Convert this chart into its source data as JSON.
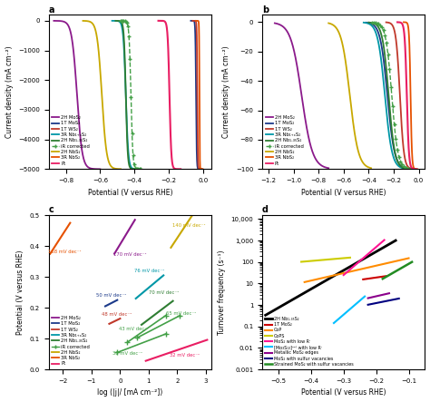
{
  "panel_a": {
    "title": "a",
    "xlabel": "Potential (V versus RHE)",
    "ylabel": "Current density (mA cm⁻²)",
    "xlim": [
      -0.9,
      0.05
    ],
    "ylim": [
      -5000,
      200
    ],
    "yticks": [
      0,
      -1000,
      -2000,
      -3000,
      -4000,
      -5000
    ],
    "xticks": [
      -0.8,
      -0.6,
      -0.4,
      -0.2,
      0.0
    ]
  },
  "panel_b": {
    "title": "b",
    "xlabel": "Potential (V versus RHE)",
    "ylabel": "Current density (mA cm⁻²)",
    "xlim": [
      -1.25,
      0.05
    ],
    "ylim": [
      -100,
      5
    ],
    "yticks": [
      0,
      -20,
      -40,
      -60,
      -80,
      -100
    ],
    "xticks": [
      -1.2,
      -1.0,
      -0.8,
      -0.6,
      -0.4,
      -0.2,
      0.0
    ]
  },
  "panel_c": {
    "title": "c",
    "xlabel": "log (|j|/ [mA cm⁻²])",
    "ylabel": "Potential (V versus RHE)",
    "xlim": [
      -2.5,
      3.2
    ],
    "ylim": [
      0.0,
      0.5
    ],
    "yticks": [
      0.0,
      0.1,
      0.2,
      0.3,
      0.4,
      0.5
    ],
    "xticks": [
      -2,
      -1,
      0,
      1,
      2,
      3
    ]
  },
  "panel_d": {
    "title": "d",
    "xlabel": "Potential (V versus RHE)",
    "ylabel": "Turnover frequency (s⁻¹)",
    "xlim": [
      -0.55,
      -0.05
    ],
    "xticks": [
      -0.5,
      -0.4,
      -0.3,
      -0.2,
      -0.1
    ]
  },
  "colors": {
    "2H MoS2": "#8B1A8B",
    "1T MoS2": "#1C3A8A",
    "1T WS2": "#C0392B",
    "3R NbxS2": "#0097A7",
    "2H Nb135S2": "#2E7D32",
    "iR": "#43A047",
    "2H NbS2": "#C8A800",
    "3R NbS2": "#E65100",
    "Pt": "#E91E63"
  },
  "legend_entries": [
    {
      "label": "2H MoS₂",
      "color": "#8B1A8B"
    },
    {
      "label": "1T MoS₂",
      "color": "#1C3A8A"
    },
    {
      "label": "1T WS₂",
      "color": "#C0392B"
    },
    {
      "label": "3R Nb₁₊ₓS₂",
      "color": "#0097A7"
    },
    {
      "label": "2H Nb₁.₃₅S₂",
      "color": "#2E7D32"
    },
    {
      "label": "iR corrected",
      "color": "#43A047"
    },
    {
      "label": "2H NbS₂",
      "color": "#C8A800"
    },
    {
      "label": "3R NbS₂",
      "color": "#E65100"
    },
    {
      "label": "Pt",
      "color": "#E91E63"
    }
  ],
  "background": "#FFFFFF"
}
